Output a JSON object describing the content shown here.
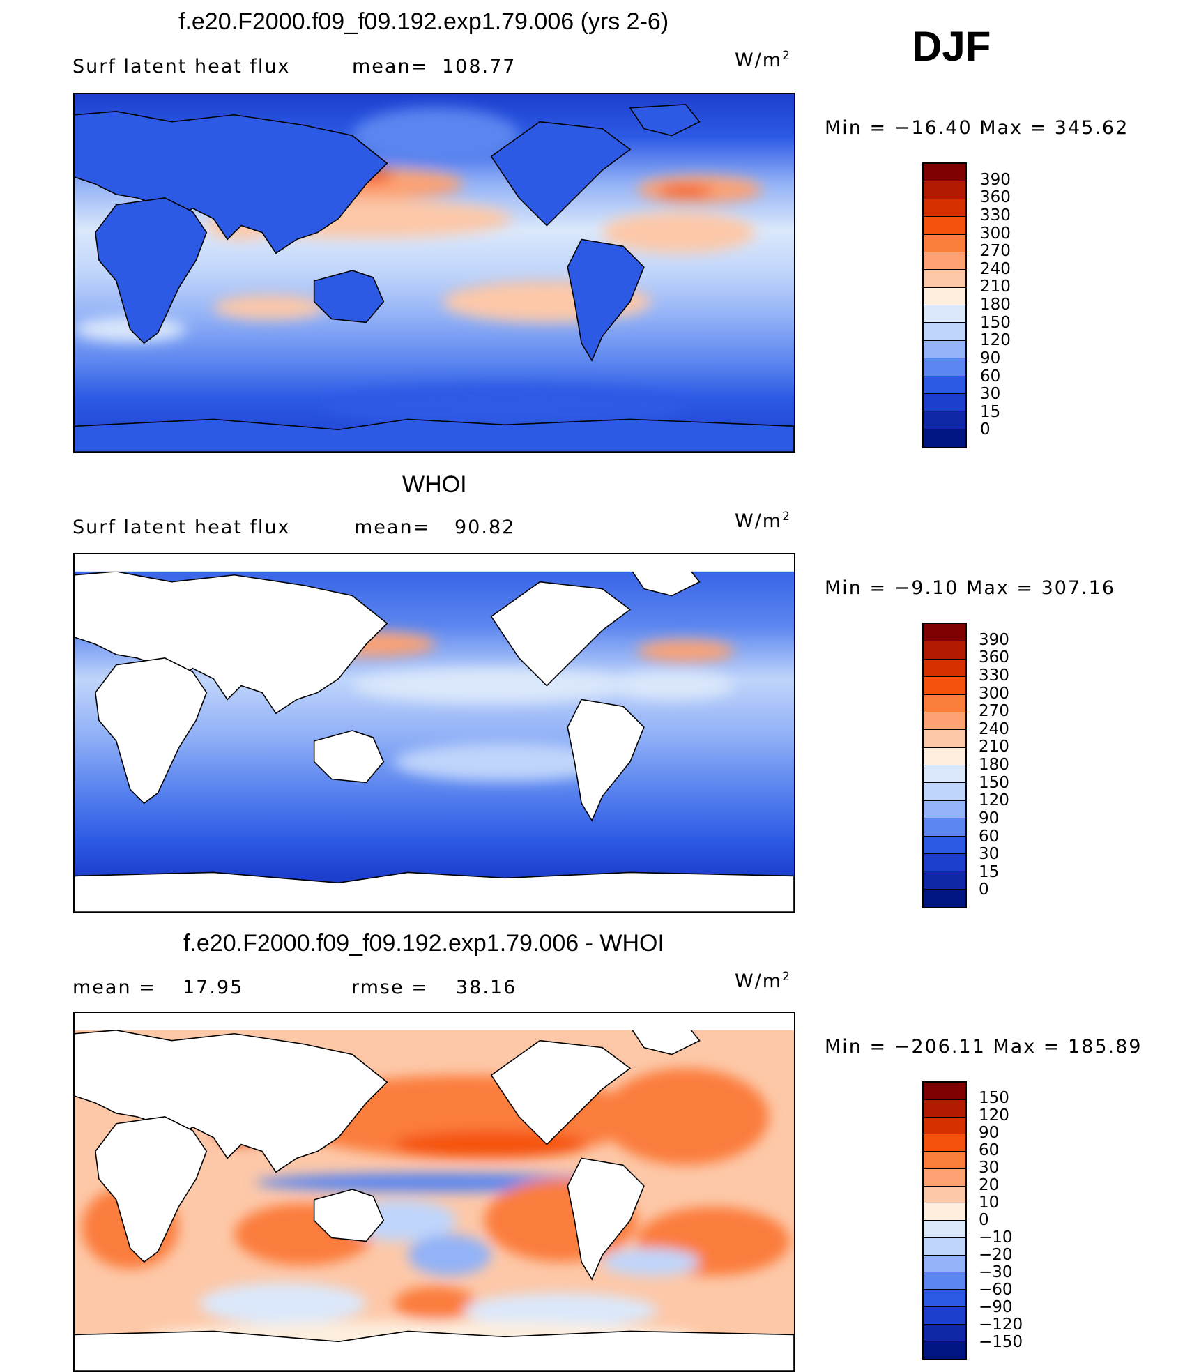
{
  "season": "DJF",
  "panels": [
    {
      "title": "f.e20.F2000.f09_f09.192.exp1.79.006 (yrs 2-6)",
      "left_label": "Surf latent heat flux",
      "mid_label": "mean=",
      "mid_value": "108.77",
      "units_base": "W/m",
      "units_exp": "2",
      "minmax": "Min  =  −16.40  Max  =  345.62",
      "levels": [
        "390",
        "360",
        "330",
        "300",
        "270",
        "240",
        "210",
        "180",
        "150",
        "120",
        "90",
        "60",
        "30",
        "15",
        "0"
      ],
      "colors": [
        "#7f0000",
        "#b31b00",
        "#d73000",
        "#f5520e",
        "#fb7d3c",
        "#fca273",
        "#fdc8a8",
        "#fdeede",
        "#dbe8fb",
        "#c0d5fb",
        "#93b2f7",
        "#5c86ef",
        "#2d5ae5",
        "#1d3fce",
        "#0e28a8",
        "#001482"
      ]
    },
    {
      "title": "WHOI",
      "left_label": "Surf latent heat flux",
      "mid_label": "mean=",
      "mid_value": "90.82",
      "units_base": "W/m",
      "units_exp": "2",
      "minmax": "Min  =    −9.10  Max  =  307.16",
      "levels": [
        "390",
        "360",
        "330",
        "300",
        "270",
        "240",
        "210",
        "180",
        "150",
        "120",
        "90",
        "60",
        "30",
        "15",
        "0"
      ],
      "colors": [
        "#7f0000",
        "#b31b00",
        "#d73000",
        "#f5520e",
        "#fb7d3c",
        "#fca273",
        "#fdc8a8",
        "#fdeede",
        "#dbe8fb",
        "#c0d5fb",
        "#93b2f7",
        "#5c86ef",
        "#2d5ae5",
        "#1d3fce",
        "#0e28a8",
        "#001482"
      ]
    },
    {
      "title": "f.e20.F2000.f09_f09.192.exp1.79.006 - WHOI",
      "left_label": "mean  =",
      "left_value": "17.95",
      "mid_label": "rmse  =",
      "mid_value": "38.16",
      "units_base": "W/m",
      "units_exp": "2",
      "minmax": "Min  =  −206.11  Max  =  185.89",
      "levels": [
        "150",
        "120",
        "90",
        "60",
        "30",
        "20",
        "10",
        "0",
        "−10",
        "−20",
        "−30",
        "−60",
        "−90",
        "−120",
        "−150"
      ],
      "colors": [
        "#7f0000",
        "#b31b00",
        "#d73000",
        "#f5520e",
        "#fb7d3c",
        "#fca273",
        "#fdc8a8",
        "#fdeede",
        "#dbe8fb",
        "#c0d5fb",
        "#93b2f7",
        "#5c86ef",
        "#2d5ae5",
        "#1d3fce",
        "#0e28a8",
        "#001482"
      ]
    }
  ]
}
